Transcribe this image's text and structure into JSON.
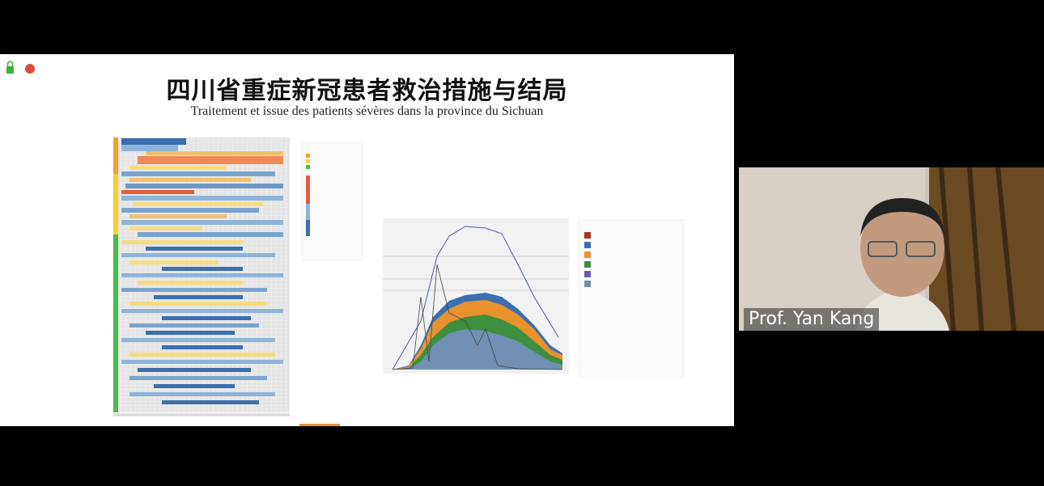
{
  "slide": {
    "title": "四川省重症新冠患者救治措施与结局",
    "subtitle": "Traitement et issue des patients sévères dans la province du Sichuan"
  },
  "video": {
    "participant_name": "Prof. Yan Kang"
  }
}
